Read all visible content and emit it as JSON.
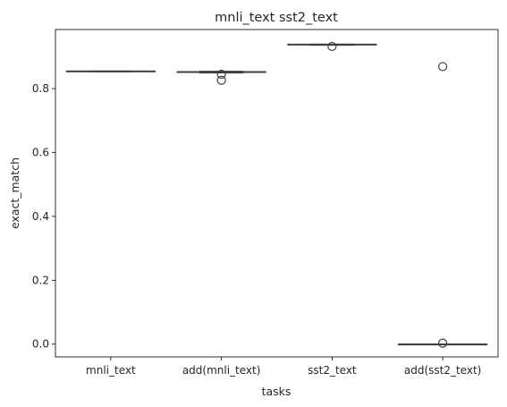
{
  "chart_data": {
    "type": "box",
    "title": "mnli_text sst2_text",
    "xlabel": "tasks",
    "ylabel": "exact_match",
    "ylim": [
      -0.04,
      0.985
    ],
    "yticks": [
      "0.0",
      "0.2",
      "0.4",
      "0.6",
      "0.8"
    ],
    "ytick_values": [
      0.0,
      0.2,
      0.4,
      0.6,
      0.8
    ],
    "grid": false,
    "categories": [
      "mnli_text",
      "add(mnli_text)",
      "sst2_text",
      "add(sst2_text)"
    ],
    "boxes": [
      {
        "category": "mnli_text",
        "whisker_low": 0.853,
        "q1": 0.853,
        "median": 0.854,
        "q3": 0.855,
        "whisker_high": 0.855,
        "outliers": []
      },
      {
        "category": "add(mnli_text)",
        "whisker_low": 0.849,
        "q1": 0.851,
        "median": 0.852,
        "q3": 0.853,
        "whisker_high": 0.854,
        "outliers": [
          0.845,
          0.826
        ]
      },
      {
        "category": "sst2_text",
        "whisker_low": 0.936,
        "q1": 0.937,
        "median": 0.938,
        "q3": 0.939,
        "whisker_high": 0.939,
        "outliers": [
          0.932
        ]
      },
      {
        "category": "add(sst2_text)",
        "whisker_low": 0.0,
        "q1": 0.0,
        "median": 0.0,
        "q3": 0.0,
        "whisker_high": 0.0,
        "outliers": [
          0.869,
          0.003
        ]
      }
    ],
    "colors": {
      "box_face": "#4c72b0",
      "box_edge": "#3f3f3f",
      "axis": "#000000",
      "text": "#262626"
    }
  }
}
